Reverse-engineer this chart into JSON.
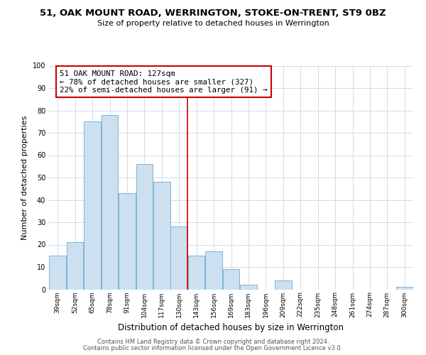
{
  "title": "51, OAK MOUNT ROAD, WERRINGTON, STOKE-ON-TRENT, ST9 0BZ",
  "subtitle": "Size of property relative to detached houses in Werrington",
  "xlabel": "Distribution of detached houses by size in Werrington",
  "ylabel": "Number of detached properties",
  "bar_labels": [
    "39sqm",
    "52sqm",
    "65sqm",
    "78sqm",
    "91sqm",
    "104sqm",
    "117sqm",
    "130sqm",
    "143sqm",
    "156sqm",
    "169sqm",
    "183sqm",
    "196sqm",
    "209sqm",
    "222sqm",
    "235sqm",
    "248sqm",
    "261sqm",
    "274sqm",
    "287sqm",
    "300sqm"
  ],
  "bar_values": [
    15,
    21,
    75,
    78,
    43,
    56,
    48,
    28,
    15,
    17,
    9,
    2,
    0,
    4,
    0,
    0,
    0,
    0,
    0,
    0,
    1
  ],
  "bar_color": "#cce0f0",
  "bar_edgecolor": "#7fb3d3",
  "reference_line_color": "#cc0000",
  "annotation_title": "51 OAK MOUNT ROAD: 127sqm",
  "annotation_line1": "← 78% of detached houses are smaller (327)",
  "annotation_line2": "22% of semi-detached houses are larger (91) →",
  "annotation_box_color": "#ffffff",
  "annotation_box_edgecolor": "#cc0000",
  "ylim": [
    0,
    100
  ],
  "yticks": [
    0,
    10,
    20,
    30,
    40,
    50,
    60,
    70,
    80,
    90,
    100
  ],
  "grid_color": "#d0dce8",
  "background_color": "#ffffff",
  "footer_line1": "Contains HM Land Registry data © Crown copyright and database right 2024.",
  "footer_line2": "Contains public sector information licensed under the Open Government Licence v3.0."
}
